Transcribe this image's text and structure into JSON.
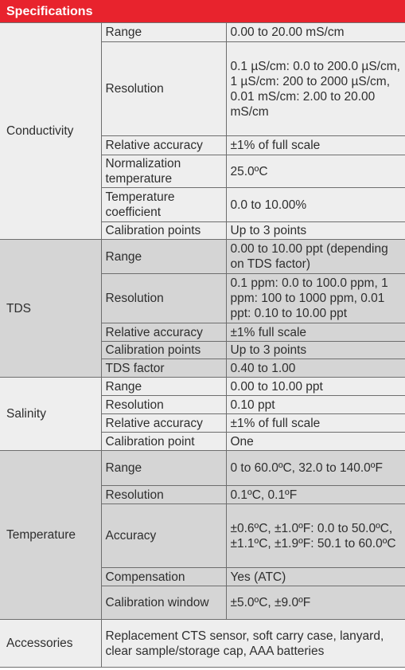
{
  "header": {
    "title": "Specifications"
  },
  "table": {
    "groups": [
      {
        "name": "Conductivity",
        "rows": [
          [
            "Range",
            "0.00 to 20.00 mS/cm"
          ],
          [
            "Resolution",
            "0.1 µS/cm: 0.0 to 200.0 µS/cm, 1 µS/cm: 200 to 2000 µS/cm, 0.01 mS/cm: 2.00 to 20.00 mS/cm"
          ],
          [
            "Relative accuracy",
            "±1% of full scale"
          ],
          [
            "Normalization temperature",
            "25.0ºC"
          ],
          [
            "Temperature coefficient",
            "0.0 to 10.00%"
          ],
          [
            "Calibration points",
            "Up to 3 points"
          ]
        ]
      },
      {
        "name": "TDS",
        "rows": [
          [
            "Range",
            "0.00 to 10.00 ppt (depending on TDS factor)"
          ],
          [
            "Resolution",
            "0.1 ppm: 0.0 to 100.0 ppm, 1 ppm: 100 to 1000 ppm, 0.01 ppt: 0.10 to 10.00 ppt"
          ],
          [
            "Relative accuracy",
            "±1% full scale"
          ],
          [
            "Calibration points",
            "Up to 3 points"
          ],
          [
            "TDS factor",
            "0.40 to 1.00"
          ]
        ]
      },
      {
        "name": "Salinity",
        "rows": [
          [
            "Range",
            "0.00 to 10.00 ppt"
          ],
          [
            "Resolution",
            "0.10 ppt"
          ],
          [
            "Relative accuracy",
            "±1% of full scale"
          ],
          [
            "Calibration point",
            "One"
          ]
        ]
      },
      {
        "name": "Temperature",
        "rows": [
          [
            "Range",
            "0 to 60.0ºC, 32.0 to 140.0ºF"
          ],
          [
            "Resolution",
            "0.1ºC, 0.1ºF"
          ],
          [
            "Accuracy",
            "±0.6ºC, ±1.0ºF: 0.0 to 50.0ºC, ±1.1ºC, ±1.9ºF: 50.1 to 60.0ºC"
          ],
          [
            "Compensation",
            "Yes (ATC)"
          ],
          [
            "Calibration window",
            "±5.0ºC, ±9.0ºF"
          ]
        ]
      },
      {
        "name": "Accessories",
        "rows": [
          [
            "Replacement CTS sensor, soft carry case, lanyard, clear sample/storage cap, AAA batteries"
          ]
        ]
      }
    ]
  }
}
